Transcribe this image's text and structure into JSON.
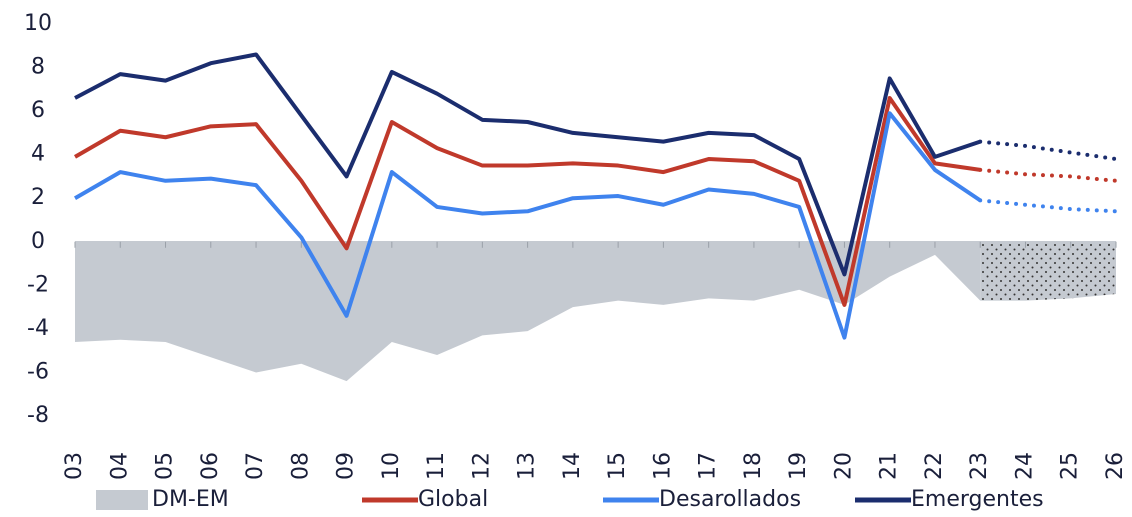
{
  "chart_data": {
    "type": "line",
    "categories": [
      "03",
      "04",
      "05",
      "06",
      "07",
      "08",
      "09",
      "10",
      "11",
      "12",
      "13",
      "14",
      "15",
      "16",
      "17",
      "18",
      "19",
      "20",
      "21",
      "22",
      "23",
      "24",
      "25",
      "26"
    ],
    "forecast_from": "23",
    "ylim": [
      -8,
      10
    ],
    "yticks": [
      -8,
      -6,
      -4,
      -2,
      0,
      2,
      4,
      6,
      8,
      10
    ],
    "area": {
      "name": "DM-EM",
      "color": "#c5cad1",
      "values": [
        -4.6,
        -4.5,
        -4.6,
        -5.3,
        -6.0,
        -5.6,
        -6.4,
        -4.6,
        -5.2,
        -4.3,
        -4.1,
        -3.0,
        -2.7,
        -2.9,
        -2.6,
        -2.7,
        -2.2,
        -2.9,
        -1.6,
        -0.6,
        -2.7,
        -2.7,
        -2.6,
        -2.4
      ]
    },
    "series": [
      {
        "name": "Global",
        "color": "#c0392b",
        "values": [
          3.9,
          5.1,
          4.8,
          5.3,
          5.4,
          2.8,
          -0.3,
          5.5,
          4.3,
          3.5,
          3.5,
          3.6,
          3.5,
          3.2,
          3.8,
          3.7,
          2.8,
          -2.9,
          6.6,
          3.6,
          3.3,
          3.1,
          3.0,
          2.8
        ]
      },
      {
        "name": "Desarollados",
        "color": "#3f83ee",
        "values": [
          2.0,
          3.2,
          2.8,
          2.9,
          2.6,
          0.2,
          -3.4,
          3.2,
          1.6,
          1.3,
          1.4,
          2.0,
          2.1,
          1.7,
          2.4,
          2.2,
          1.6,
          -4.4,
          5.9,
          3.3,
          1.9,
          1.7,
          1.5,
          1.4
        ]
      },
      {
        "name": "Emergentes",
        "color": "#1b2d6e",
        "values": [
          6.6,
          7.7,
          7.4,
          8.2,
          8.6,
          5.8,
          3.0,
          7.8,
          6.8,
          5.6,
          5.5,
          5.0,
          4.8,
          4.6,
          5.0,
          4.9,
          3.8,
          -1.5,
          7.5,
          3.9,
          4.6,
          4.4,
          4.1,
          3.8
        ]
      }
    ]
  }
}
